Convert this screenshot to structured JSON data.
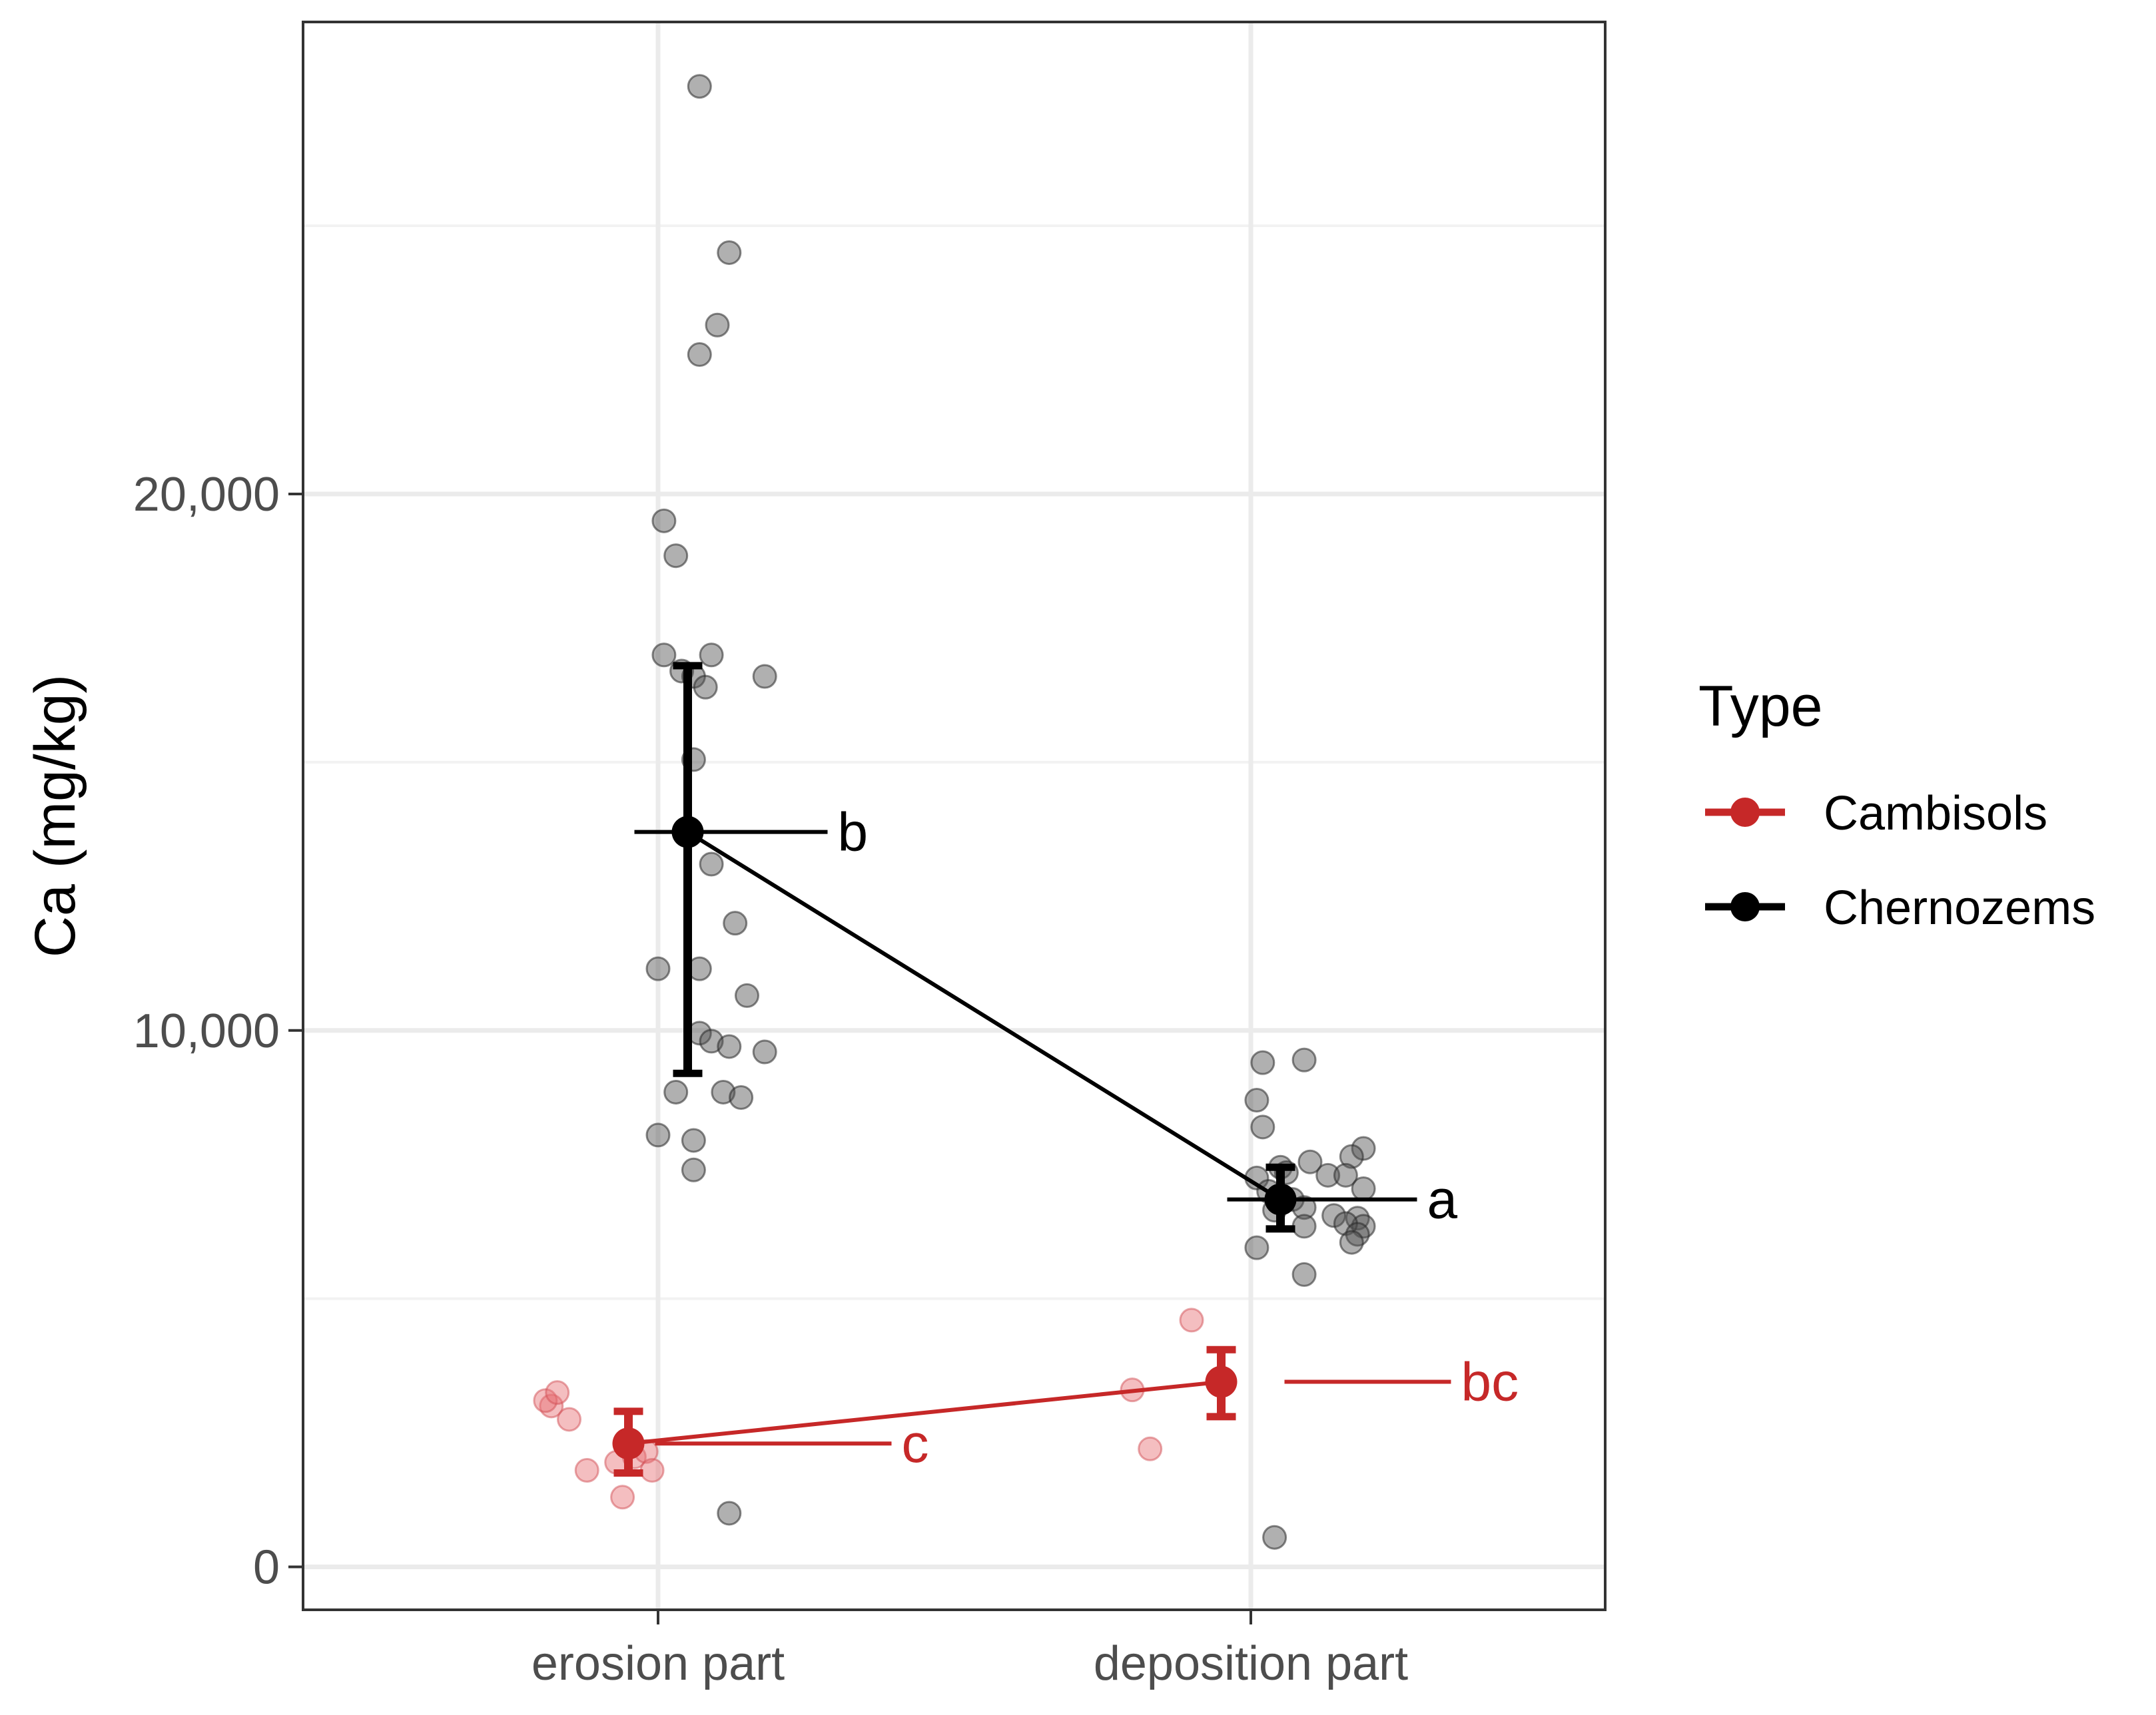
{
  "chart_data": {
    "type": "scatter",
    "title": "",
    "xlabel": "",
    "ylabel": "Ca (mg/kg)",
    "categories": [
      "erosion part",
      "deposition part"
    ],
    "ylim": [
      -800,
      28800
    ],
    "yticks": [
      0,
      10000,
      20000
    ],
    "ytick_labels": [
      "0",
      "10,000",
      "20,000"
    ],
    "grid": true,
    "legend": {
      "title": "Type",
      "placement": "right",
      "entries": [
        {
          "label": "Cambisols",
          "color": "#c62828"
        },
        {
          "label": "Chernozems",
          "color": "#000000"
        }
      ]
    },
    "series": [
      {
        "name": "Cambisols",
        "color": "#c62828",
        "raw_points": [
          {
            "x": -0.18,
            "y": 3000
          },
          {
            "x": -0.19,
            "y": 3100
          },
          {
            "x": -0.17,
            "y": 3250
          },
          {
            "x": -0.15,
            "y": 2750
          },
          {
            "x": -0.12,
            "y": 1800
          },
          {
            "x": -0.07,
            "y": 1950
          },
          {
            "x": -0.04,
            "y": 2050
          },
          {
            "x": -0.02,
            "y": 2150
          },
          {
            "x": -0.01,
            "y": 1800
          },
          {
            "x": -0.06,
            "y": 1300
          },
          {
            "x": -0.2,
            "y": 3300
          },
          {
            "x": -0.17,
            "y": 2200
          },
          {
            "x": -0.1,
            "y": 4600
          }
        ],
        "means": [
          2300,
          3450
        ],
        "error_bars": [
          [
            1750,
            2900
          ],
          [
            2800,
            4050
          ]
        ],
        "letters": [
          "c",
          "bc"
        ]
      },
      {
        "name": "Chernozems",
        "color": "#000000",
        "raw_points": [
          {
            "x": 0.07,
            "y": 27600
          },
          {
            "x": 0.12,
            "y": 24500
          },
          {
            "x": 0.1,
            "y": 23150
          },
          {
            "x": 0.07,
            "y": 22600
          },
          {
            "x": 0.01,
            "y": 19500
          },
          {
            "x": 0.03,
            "y": 18850
          },
          {
            "x": 0.01,
            "y": 17000
          },
          {
            "x": 0.04,
            "y": 16700
          },
          {
            "x": 0.06,
            "y": 16600
          },
          {
            "x": 0.09,
            "y": 17000
          },
          {
            "x": 0.08,
            "y": 16400
          },
          {
            "x": 0.18,
            "y": 16600
          },
          {
            "x": 0.06,
            "y": 15050
          },
          {
            "x": 0.09,
            "y": 13100
          },
          {
            "x": 0.13,
            "y": 12000
          },
          {
            "x": 0.0,
            "y": 11150
          },
          {
            "x": 0.07,
            "y": 11150
          },
          {
            "x": 0.15,
            "y": 10650
          },
          {
            "x": 0.07,
            "y": 9950
          },
          {
            "x": 0.09,
            "y": 9800
          },
          {
            "x": 0.12,
            "y": 9700
          },
          {
            "x": 0.18,
            "y": 9600
          },
          {
            "x": 0.03,
            "y": 8850
          },
          {
            "x": 0.11,
            "y": 8850
          },
          {
            "x": 0.14,
            "y": 8750
          },
          {
            "x": 0.0,
            "y": 8050
          },
          {
            "x": 0.06,
            "y": 7950
          },
          {
            "x": 0.06,
            "y": 7400
          },
          {
            "x": 0.12,
            "y": 1000
          },
          {
            "x": 0.02,
            "y": 9400
          },
          {
            "x": 0.09,
            "y": 9450
          },
          {
            "x": 0.01,
            "y": 8700
          },
          {
            "x": 0.02,
            "y": 8200
          },
          {
            "x": 0.19,
            "y": 7800
          },
          {
            "x": 0.17,
            "y": 7650
          },
          {
            "x": 0.1,
            "y": 7550
          },
          {
            "x": 0.05,
            "y": 7450
          },
          {
            "x": 0.06,
            "y": 7350
          },
          {
            "x": 0.13,
            "y": 7300
          },
          {
            "x": 0.01,
            "y": 7250
          },
          {
            "x": 0.16,
            "y": 7300
          },
          {
            "x": 0.19,
            "y": 7050
          },
          {
            "x": 0.03,
            "y": 7000
          },
          {
            "x": 0.07,
            "y": 6850
          },
          {
            "x": 0.04,
            "y": 6650
          },
          {
            "x": 0.09,
            "y": 6700
          },
          {
            "x": 0.14,
            "y": 6550
          },
          {
            "x": 0.18,
            "y": 6500
          },
          {
            "x": 0.19,
            "y": 6350
          },
          {
            "x": 0.16,
            "y": 6400
          },
          {
            "x": 0.09,
            "y": 6350
          },
          {
            "x": 0.18,
            "y": 6200
          },
          {
            "x": 0.17,
            "y": 6050
          },
          {
            "x": 0.01,
            "y": 5950
          },
          {
            "x": 0.09,
            "y": 5450
          },
          {
            "x": 0.04,
            "y": 550
          }
        ],
        "means": [
          13700,
          6850
        ],
        "error_bars": [
          [
            9200,
            16800
          ],
          [
            6300,
            7450
          ]
        ],
        "letters": [
          "b",
          "a"
        ]
      }
    ]
  }
}
